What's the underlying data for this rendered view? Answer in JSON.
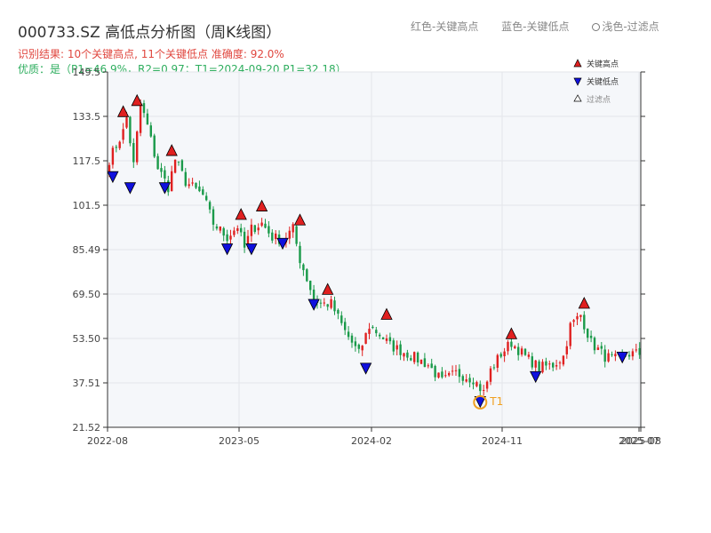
{
  "header": {
    "title": "000733.SZ 高低点分析图（周K线图）",
    "legend_high": "红色-关键高点",
    "legend_low": "蓝色-关键低点",
    "legend_filtered": "浅色-过滤点",
    "result_line": "识别结果: 10个关键高点, 11个关键低点  准确度: 92.0%",
    "quality_line": "优质：是（P1=46.9%，R2=0.97；T1=2024-09-20 P1=32.18）"
  },
  "colors": {
    "up": "#e02020",
    "down": "#1a9a4a",
    "high_marker": "#e02020",
    "low_marker": "#1010dd",
    "t1": "#f0a020",
    "plot_bg": "#f5f7fa"
  },
  "chart_data": {
    "type": "candlestick",
    "x_ticks": [
      "2022-08",
      "2023-05",
      "2024-02",
      "2024-11",
      "2025-07",
      "2025-08"
    ],
    "y_ticks": [
      "21.52",
      "37.51",
      "53.50",
      "69.50",
      "85.49",
      "101.5",
      "117.5",
      "133.5",
      "149.5"
    ],
    "ylim": [
      21.52,
      149.5
    ],
    "week_count": 154,
    "grid": true,
    "legend": {
      "position": "top-right",
      "items": [
        "关键高点",
        "关键低点",
        "过滤点"
      ]
    },
    "close_path": [
      [
        0,
        118
      ],
      [
        4,
        128
      ],
      [
        5,
        133
      ],
      [
        7,
        116
      ],
      [
        9,
        138
      ],
      [
        11,
        130
      ],
      [
        14,
        115
      ],
      [
        17,
        108
      ],
      [
        19,
        118
      ],
      [
        22,
        110
      ],
      [
        27,
        105
      ],
      [
        30,
        95
      ],
      [
        34,
        90
      ],
      [
        37,
        94
      ],
      [
        39,
        86
      ],
      [
        41,
        93
      ],
      [
        44,
        95
      ],
      [
        47,
        90
      ],
      [
        50,
        89
      ],
      [
        53,
        93
      ],
      [
        55,
        82
      ],
      [
        59,
        68
      ],
      [
        61,
        66
      ],
      [
        64,
        66
      ],
      [
        68,
        56
      ],
      [
        72,
        48
      ],
      [
        75,
        58
      ],
      [
        78,
        55
      ],
      [
        81,
        51
      ],
      [
        86,
        48
      ],
      [
        89,
        46
      ],
      [
        92,
        44
      ],
      [
        96,
        38
      ],
      [
        100,
        41
      ],
      [
        105,
        39
      ],
      [
        108,
        34
      ],
      [
        110,
        42
      ],
      [
        113,
        48
      ],
      [
        116,
        52
      ],
      [
        120,
        47
      ],
      [
        124,
        43
      ],
      [
        128,
        44
      ],
      [
        131,
        47
      ],
      [
        133,
        58
      ],
      [
        136,
        62
      ],
      [
        139,
        52
      ],
      [
        143,
        47
      ],
      [
        146,
        46
      ],
      [
        149,
        48
      ],
      [
        153,
        48
      ]
    ],
    "key_highs": [
      {
        "week": 4,
        "price": 135
      },
      {
        "week": 8,
        "price": 139
      },
      {
        "week": 18,
        "price": 121
      },
      {
        "week": 38,
        "price": 98
      },
      {
        "week": 44,
        "price": 101
      },
      {
        "week": 55,
        "price": 96
      },
      {
        "week": 63,
        "price": 71
      },
      {
        "week": 80,
        "price": 62
      },
      {
        "week": 116,
        "price": 55
      },
      {
        "week": 137,
        "price": 66
      }
    ],
    "key_lows": [
      {
        "week": 1,
        "price": 112
      },
      {
        "week": 6,
        "price": 108
      },
      {
        "week": 16,
        "price": 108
      },
      {
        "week": 34,
        "price": 86
      },
      {
        "week": 41,
        "price": 86
      },
      {
        "week": 50,
        "price": 88
      },
      {
        "week": 59,
        "price": 66
      },
      {
        "week": 74,
        "price": 43
      },
      {
        "week": 107,
        "price": 31
      },
      {
        "week": 123,
        "price": 40
      },
      {
        "week": 148,
        "price": 47
      }
    ],
    "t1_marker": {
      "week": 107,
      "price": 30.5,
      "label": "T1"
    }
  }
}
